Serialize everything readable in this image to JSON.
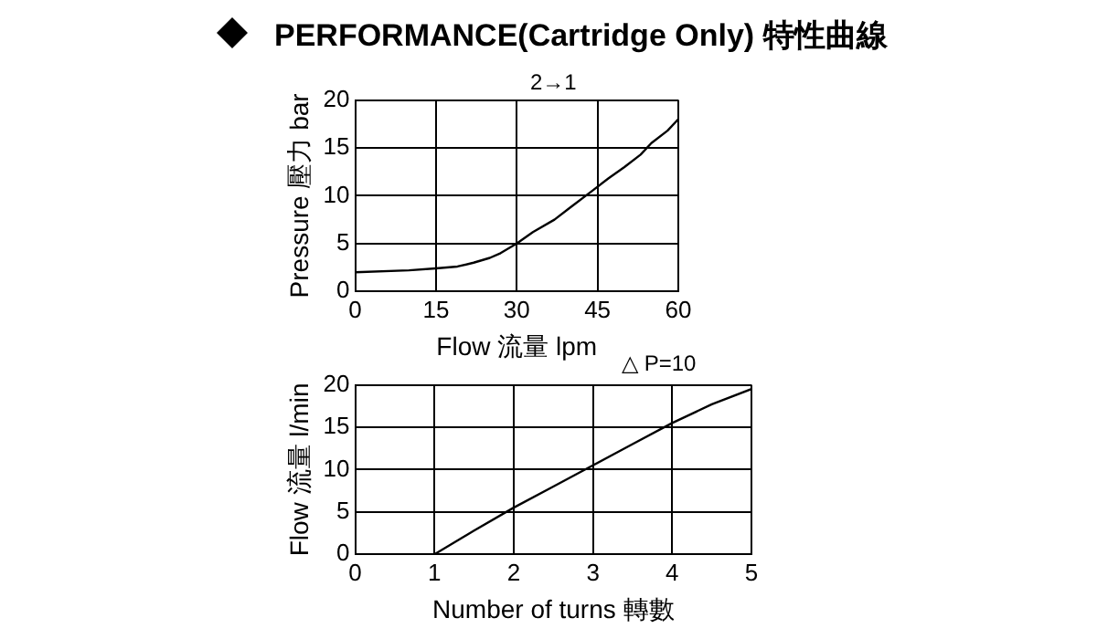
{
  "chart_data": [
    {
      "type": "line",
      "title": "PERFORMANCE(Cartridge Only) 特性曲線",
      "annotations": [
        "2→1"
      ],
      "xlabel": "Flow 流量 lpm",
      "ylabel": "Pressure 壓力 bar",
      "series": [
        {
          "color": "#000000",
          "x": [
            0,
            10,
            15,
            19,
            22,
            25,
            27,
            30,
            33,
            37,
            40,
            44,
            47,
            50,
            53,
            55,
            58,
            60
          ],
          "values": [
            2,
            2.2,
            2.4,
            2.6,
            3,
            3.5,
            4,
            5,
            6.2,
            7.5,
            8.8,
            10.5,
            11.8,
            13,
            14.3,
            15.5,
            16.8,
            18
          ]
        }
      ],
      "xlim": [
        0,
        60
      ],
      "xticks": [
        0,
        15,
        30,
        45,
        60
      ],
      "ylim": [
        0,
        20
      ],
      "yticks": [
        0,
        5,
        10,
        15,
        20
      ],
      "grid": true,
      "legend": false,
      "marker": "none",
      "line_style": "solid"
    },
    {
      "type": "line",
      "annotations": [
        "△ P=10"
      ],
      "xlabel": "Number of turns 轉數",
      "ylabel": "Flow 流量 l/min",
      "series": [
        {
          "color": "#000000",
          "x": [
            1,
            1.5,
            2,
            2.5,
            3,
            3.5,
            4,
            4.5,
            5
          ],
          "values": [
            0,
            2.8,
            5.5,
            8,
            10.5,
            13,
            15.5,
            17.7,
            19.5
          ]
        }
      ],
      "xlim": [
        0,
        5
      ],
      "xticks": [
        0,
        1,
        2,
        3,
        4,
        5
      ],
      "ylim": [
        0,
        20
      ],
      "yticks": [
        0,
        5,
        10,
        15,
        20
      ],
      "grid": true,
      "legend": false,
      "marker": "none",
      "line_style": "solid"
    }
  ]
}
